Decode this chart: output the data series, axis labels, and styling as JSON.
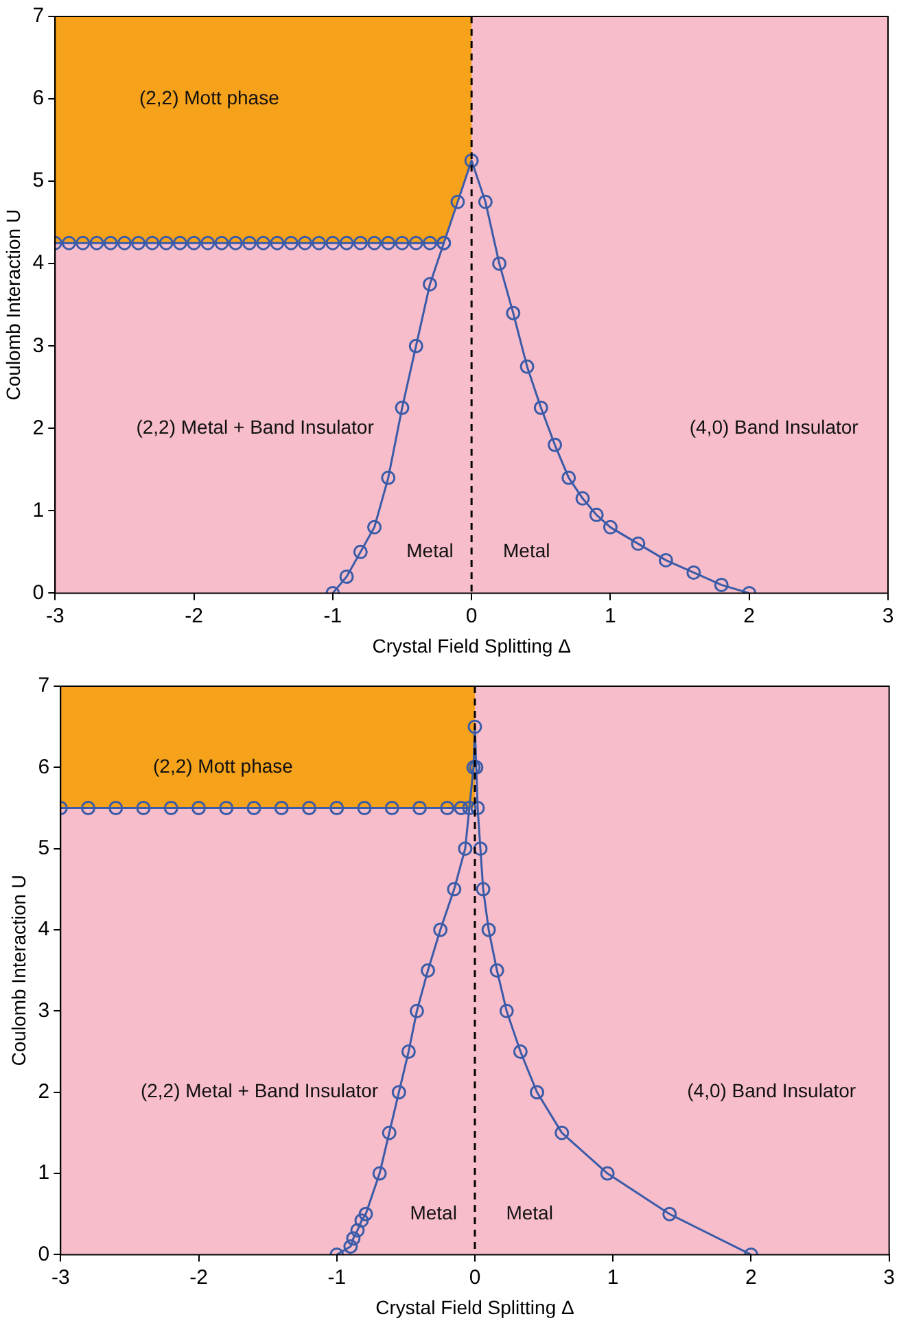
{
  "chart_data": [
    {
      "type": "line",
      "xlabel": "Crystal Field Splitting Δ",
      "ylabel": "Coulomb Interaction U",
      "xlim": [
        -3,
        3
      ],
      "xticks": [
        -3,
        -2,
        -1,
        0,
        1,
        2,
        3
      ],
      "ylim": [
        0,
        7
      ],
      "yticks": [
        0,
        1,
        2,
        3,
        4,
        5,
        6,
        7
      ],
      "grid": false,
      "marker": "circle",
      "bands": [
        {
          "axis": "x",
          "from": -3,
          "to": 3,
          "color": "#f7bdcb"
        }
      ],
      "ref_lines": [
        {
          "axis": "x",
          "value": 0,
          "color": "#000000",
          "line_style": "dashed"
        }
      ],
      "series": [
        {
          "type": "area",
          "color": "#f7a21b",
          "marker": "none",
          "x": [
            -3,
            -0.2,
            -0.1,
            0,
            0,
            -3
          ],
          "values": [
            4.25,
            4.25,
            4.75,
            5.25,
            7,
            7
          ]
        },
        {
          "color": "#3a5ba8",
          "x": [
            -3,
            -2.9,
            -2.8,
            -2.7,
            -2.6,
            -2.5,
            -2.4,
            -2.3,
            -2.2,
            -2.1,
            -2,
            -1.9,
            -1.8,
            -1.7,
            -1.6,
            -1.5,
            -1.4,
            -1.3,
            -1.2,
            -1.1,
            -1,
            -0.9,
            -0.8,
            -0.7,
            -0.6,
            -0.5,
            -0.4,
            -0.3,
            -0.2
          ],
          "values": [
            4.25,
            4.25,
            4.25,
            4.25,
            4.25,
            4.25,
            4.25,
            4.25,
            4.25,
            4.25,
            4.25,
            4.25,
            4.25,
            4.25,
            4.25,
            4.25,
            4.25,
            4.25,
            4.25,
            4.25,
            4.25,
            4.25,
            4.25,
            4.25,
            4.25,
            4.25,
            4.25,
            4.25,
            4.25
          ]
        },
        {
          "color": "#3a5ba8",
          "x": [
            -1,
            -0.9,
            -0.8,
            -0.7,
            -0.6,
            -0.5,
            -0.4,
            -0.3,
            -0.2,
            -0.1,
            0,
            0.1,
            0.2,
            0.3,
            0.4,
            0.5,
            0.6,
            0.7,
            0.8,
            0.9,
            1,
            1.2,
            1.4,
            1.6,
            1.8,
            2
          ],
          "values": [
            0,
            0.2,
            0.5,
            0.8,
            1.4,
            2.25,
            3,
            3.75,
            4.25,
            4.75,
            5.25,
            4.75,
            4,
            3.4,
            2.75,
            2.25,
            1.8,
            1.4,
            1.15,
            0.95,
            0.8,
            0.6,
            0.4,
            0.25,
            0.1,
            0
          ]
        }
      ],
      "annotations": [
        "(2,2) Mott phase",
        "(2,2) Metal + Band Insulator",
        "(4,0) Band Insulator",
        "Metal",
        "Metal"
      ]
    },
    {
      "type": "line",
      "xlabel": "Crystal Field Splitting Δ",
      "ylabel": "Coulomb Interaction U",
      "xlim": [
        -3,
        3
      ],
      "xticks": [
        -3,
        -2,
        -1,
        0,
        1,
        2,
        3
      ],
      "ylim": [
        0,
        7
      ],
      "yticks": [
        0,
        1,
        2,
        3,
        4,
        5,
        6,
        7
      ],
      "grid": false,
      "marker": "circle",
      "bands": [
        {
          "axis": "x",
          "from": -3,
          "to": 3,
          "color": "#f7bdcb"
        }
      ],
      "ref_lines": [
        {
          "axis": "x",
          "value": 0,
          "color": "#000000",
          "line_style": "dashed"
        }
      ],
      "series": [
        {
          "type": "area",
          "color": "#f7a21b",
          "marker": "none",
          "x": [
            -3,
            0,
            0,
            -3
          ],
          "values": [
            5.5,
            5.5,
            7,
            7
          ]
        },
        {
          "color": "#3a5ba8",
          "x": [
            -3,
            -2.8,
            -2.6,
            -2.4,
            -2.2,
            -2,
            -1.8,
            -1.6,
            -1.4,
            -1.2,
            -1,
            -0.8,
            -0.6,
            -0.4,
            -0.2,
            -0.1,
            -0.04
          ],
          "values": [
            5.5,
            5.5,
            5.5,
            5.5,
            5.5,
            5.5,
            5.5,
            5.5,
            5.5,
            5.5,
            5.5,
            5.5,
            5.5,
            5.5,
            5.5,
            5.5,
            5.5
          ]
        },
        {
          "color": "#3a5ba8",
          "x": [
            -1,
            -0.9,
            -0.88,
            -0.85,
            -0.82,
            -0.79,
            -0.69,
            -0.62,
            -0.55,
            -0.48,
            -0.42,
            -0.34,
            -0.25,
            -0.15,
            -0.07,
            -0.01,
            0,
            0.01,
            0.02,
            0.04,
            0.06,
            0.1,
            0.16,
            0.23,
            0.33,
            0.45,
            0.63,
            0.96,
            1.41,
            2
          ],
          "values": [
            0,
            0.1,
            0.2,
            0.3,
            0.42,
            0.5,
            1,
            1.5,
            2,
            2.5,
            3,
            3.5,
            4,
            4.5,
            5,
            6,
            6.5,
            6,
            5.5,
            5,
            4.5,
            4,
            3.5,
            3,
            2.5,
            2,
            1.5,
            1,
            0.5,
            0
          ]
        }
      ],
      "annotations": [
        "(2,2) Mott phase",
        "(2,2) Metal + Band Insulator",
        "(4,0) Band Insulator",
        "Metal",
        "Metal"
      ]
    }
  ]
}
